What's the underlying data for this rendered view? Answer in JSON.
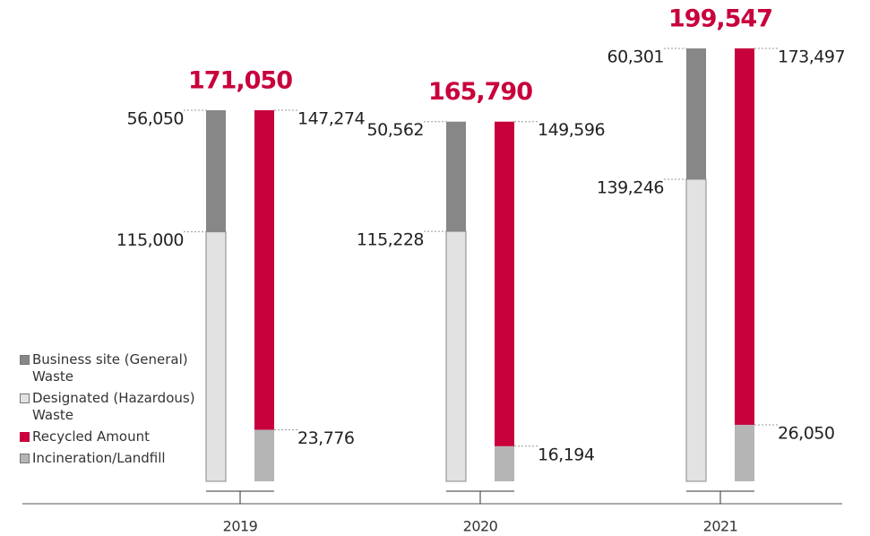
{
  "chart_data": {
    "type": "paired-stacked-bar",
    "categories": [
      "2019",
      "2020",
      "2021"
    ],
    "totals": {
      "values": [
        171050,
        165790,
        199547
      ],
      "value_labels": [
        "171,050",
        "165,790",
        "199,547"
      ],
      "color": "#c8003c"
    },
    "series": [
      {
        "name": "Business site (General) Waste",
        "color": "#878787",
        "values": [
          56050,
          50562,
          60301
        ],
        "value_labels": [
          "56,050",
          "50,562",
          "60,301"
        ]
      },
      {
        "name": "Designated (Hazardous) Waste",
        "color": "#e2e2e2",
        "values": [
          115000,
          115228,
          139246
        ],
        "value_labels": [
          "115,000",
          "115,228",
          "139,246"
        ]
      },
      {
        "name": "Recycled Amount",
        "color": "#c8003c",
        "values": [
          147274,
          149596,
          173497
        ],
        "value_labels": [
          "147,274",
          "149,596",
          "173,497"
        ]
      },
      {
        "name": "Incineration/Landfill",
        "color": "#b5b5b5",
        "values": [
          23776,
          16194,
          26050
        ],
        "value_labels": [
          "23,776",
          "16,194",
          "26,050"
        ]
      }
    ]
  }
}
